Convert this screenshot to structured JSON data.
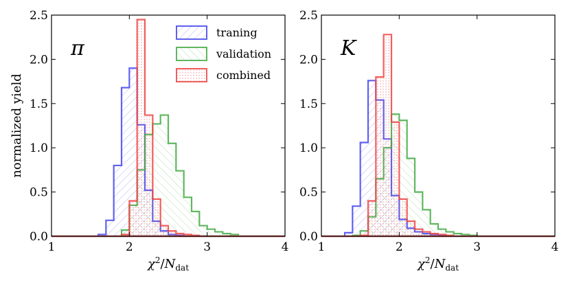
{
  "chart_data": [
    {
      "type": "histogram",
      "panel_label": "π",
      "xlabel_main": "χ",
      "xlabel_sup": "2",
      "xlabel_slash": "/",
      "xlabel_N": "N",
      "xlabel_sub": "dat",
      "ylabel": "normalized yield",
      "xlim": [
        1,
        4
      ],
      "ylim": [
        0,
        2.5
      ],
      "xticks": [
        "1",
        "2",
        "3",
        "4"
      ],
      "yticks": [
        "0.0",
        "0.5",
        "1.0",
        "1.5",
        "2.0",
        "2.5"
      ],
      "bin_edges": [
        1.0,
        1.1,
        1.2,
        1.3,
        1.4,
        1.5,
        1.6,
        1.7,
        1.8,
        1.9,
        2.0,
        2.1,
        2.2,
        2.3,
        2.4,
        2.5,
        2.6,
        2.7,
        2.8,
        2.9,
        3.0,
        3.1,
        3.2,
        3.3,
        3.4,
        3.5,
        3.6,
        3.7,
        3.8,
        3.9,
        4.0
      ],
      "series": [
        {
          "name": "traning",
          "color": "#4444ee",
          "values": [
            0,
            0,
            0,
            0,
            0,
            0,
            0.02,
            0.18,
            0.8,
            1.68,
            1.9,
            1.26,
            0.52,
            0.17,
            0.06,
            0.02,
            0.01,
            0,
            0,
            0,
            0,
            0,
            0,
            0,
            0,
            0,
            0,
            0,
            0,
            0
          ]
        },
        {
          "name": "validation",
          "color": "#44aa44",
          "values": [
            0,
            0,
            0,
            0,
            0,
            0,
            0,
            0,
            0,
            0.07,
            0.35,
            0.75,
            1.15,
            1.27,
            1.37,
            1.05,
            0.74,
            0.44,
            0.28,
            0.12,
            0.08,
            0.05,
            0.03,
            0.02,
            0,
            0,
            0,
            0,
            0,
            0
          ]
        },
        {
          "name": "combined",
          "color": "#ee4444",
          "values": [
            0,
            0,
            0,
            0,
            0,
            0,
            0,
            0,
            0,
            0.02,
            0.4,
            2.45,
            1.37,
            0.42,
            0.12,
            0.06,
            0.03,
            0.02,
            0.01,
            0,
            0,
            0,
            0,
            0,
            0,
            0,
            0,
            0,
            0,
            0
          ]
        }
      ],
      "legend": [
        "traning",
        "validation",
        "combined"
      ]
    },
    {
      "type": "histogram",
      "panel_label": "K",
      "xlabel_main": "χ",
      "xlabel_sup": "2",
      "xlabel_slash": "/",
      "xlabel_N": "N",
      "xlabel_sub": "dat",
      "ylabel": "",
      "xlim": [
        1,
        4
      ],
      "ylim": [
        0,
        2.5
      ],
      "xticks": [
        "1",
        "2",
        "3",
        "4"
      ],
      "yticks": [
        "0.0",
        "0.5",
        "1.0",
        "1.5",
        "2.0",
        "2.5"
      ],
      "bin_edges": [
        1.0,
        1.1,
        1.2,
        1.3,
        1.4,
        1.5,
        1.6,
        1.7,
        1.8,
        1.9,
        2.0,
        2.1,
        2.2,
        2.3,
        2.4,
        2.5,
        2.6,
        2.7,
        2.8,
        2.9,
        3.0,
        3.1,
        3.2,
        3.3,
        3.4,
        3.5,
        3.6,
        3.7,
        3.8,
        3.9,
        4.0
      ],
      "series": [
        {
          "name": "traning",
          "color": "#4444ee",
          "values": [
            0,
            0,
            0,
            0.04,
            0.34,
            1.06,
            1.76,
            1.54,
            1.1,
            0.46,
            0.19,
            0.09,
            0.05,
            0.03,
            0.02,
            0.01,
            0,
            0,
            0,
            0,
            0,
            0,
            0,
            0,
            0,
            0,
            0,
            0,
            0,
            0
          ]
        },
        {
          "name": "validation",
          "color": "#44aa44",
          "values": [
            0,
            0,
            0,
            0,
            0.01,
            0.06,
            0.22,
            0.65,
            1.0,
            1.38,
            1.31,
            0.88,
            0.5,
            0.3,
            0.14,
            0.08,
            0.05,
            0.03,
            0.02,
            0.01,
            0,
            0,
            0,
            0,
            0,
            0,
            0,
            0,
            0,
            0
          ]
        },
        {
          "name": "combined",
          "color": "#ee4444",
          "values": [
            0,
            0,
            0,
            0,
            0,
            0.01,
            0.4,
            1.8,
            2.28,
            1.29,
            0.42,
            0.17,
            0.08,
            0.05,
            0.03,
            0.02,
            0.01,
            0,
            0,
            0,
            0,
            0,
            0,
            0,
            0,
            0,
            0,
            0,
            0,
            0
          ]
        }
      ],
      "legend": []
    }
  ]
}
